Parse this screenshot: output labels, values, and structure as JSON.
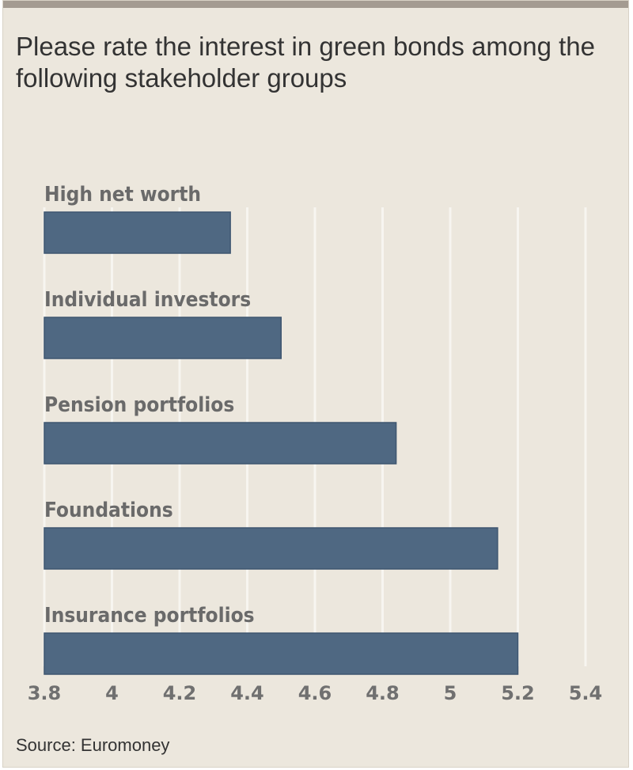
{
  "chart_data": {
    "type": "bar",
    "orientation": "horizontal",
    "title": "Please rate the interest in green bonds among the following stakeholder groups",
    "categories": [
      "High net worth",
      "Individual investors",
      "Pension portfolios",
      "Foundations",
      "Insurance portfolios"
    ],
    "values": [
      4.35,
      4.5,
      4.84,
      5.14,
      5.2
    ],
    "xlim": [
      3.8,
      5.4
    ],
    "ticks": [
      "3.8",
      "4",
      "4.2",
      "4.4",
      "4.6",
      "4.8",
      "5",
      "5.2",
      "5.4"
    ],
    "grid": true,
    "bar_color": "#4f6882",
    "background": "#ece7dd",
    "source": "Source: Euromoney"
  }
}
